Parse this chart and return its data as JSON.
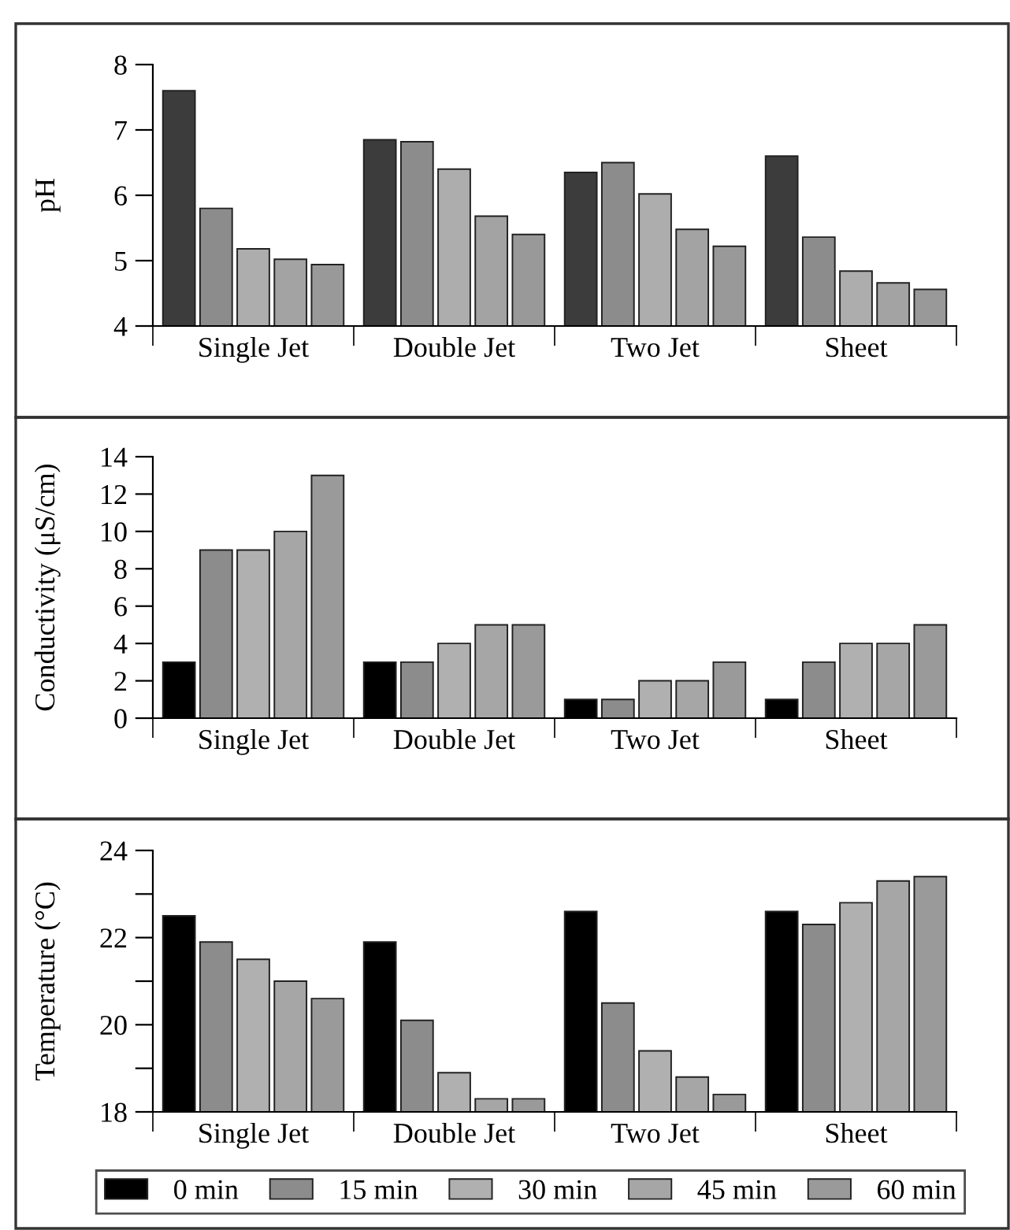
{
  "chart_data": [
    {
      "type": "bar",
      "ylabel": "pH",
      "categories": [
        "Single Jet",
        "Double Jet",
        "Two Jet",
        "Sheet"
      ],
      "ylim": [
        4,
        8
      ],
      "yticks": [
        4,
        5,
        6,
        7,
        8
      ],
      "series": [
        {
          "color": "#3c3c3c",
          "values": [
            7.6,
            6.85,
            6.35,
            6.6
          ]
        },
        {
          "color": "#8c8c8c",
          "values": [
            5.8,
            6.82,
            6.5,
            5.36
          ]
        },
        {
          "color": "#adadad",
          "values": [
            5.18,
            6.4,
            6.02,
            4.84
          ]
        },
        {
          "color": "#a3a3a3",
          "values": [
            5.02,
            5.68,
            5.48,
            4.66
          ]
        },
        {
          "color": "#999999",
          "values": [
            4.94,
            5.4,
            5.22,
            4.56
          ]
        }
      ]
    },
    {
      "type": "bar",
      "ylabel": "Conductivity (μS/cm)",
      "categories": [
        "Single Jet",
        "Double Jet",
        "Two Jet",
        "Sheet"
      ],
      "ylim": [
        0,
        14
      ],
      "yticks": [
        0,
        2,
        4,
        6,
        8,
        10,
        12,
        14
      ],
      "series": [
        {
          "color": "#000000",
          "values": [
            3,
            3,
            1,
            1
          ]
        },
        {
          "color": "#8c8c8c",
          "values": [
            9,
            3,
            1,
            3
          ]
        },
        {
          "color": "#b0b0b0",
          "values": [
            9,
            4,
            2,
            4
          ]
        },
        {
          "color": "#a6a6a6",
          "values": [
            10,
            5,
            2,
            4
          ]
        },
        {
          "color": "#9a9a9a",
          "values": [
            13,
            5,
            3,
            5
          ]
        }
      ]
    },
    {
      "type": "bar",
      "ylabel": "Temperature (°C)",
      "categories": [
        "Single Jet",
        "Double Jet",
        "Two Jet",
        "Sheet"
      ],
      "ylim": [
        18,
        24
      ],
      "yticks": [
        18,
        {
          "value": 19,
          "label": null
        },
        20,
        {
          "value": 21,
          "label": null
        },
        22,
        {
          "value": 23,
          "label": null
        },
        24
      ],
      "legend": "bottom",
      "series": [
        {
          "name": "0 min",
          "color": "#000000",
          "values": [
            22.5,
            21.9,
            22.6,
            22.6
          ]
        },
        {
          "name": "15 min",
          "color": "#8c8c8c",
          "values": [
            21.9,
            20.1,
            20.5,
            22.3
          ]
        },
        {
          "name": "30 min",
          "color": "#b0b0b0",
          "values": [
            21.5,
            18.9,
            19.4,
            22.8
          ]
        },
        {
          "name": "45 min",
          "color": "#a6a6a6",
          "values": [
            21.0,
            18.3,
            18.8,
            23.3
          ]
        },
        {
          "name": "60 min",
          "color": "#9a9a9a",
          "values": [
            20.6,
            18.3,
            18.4,
            23.4
          ]
        }
      ]
    }
  ]
}
